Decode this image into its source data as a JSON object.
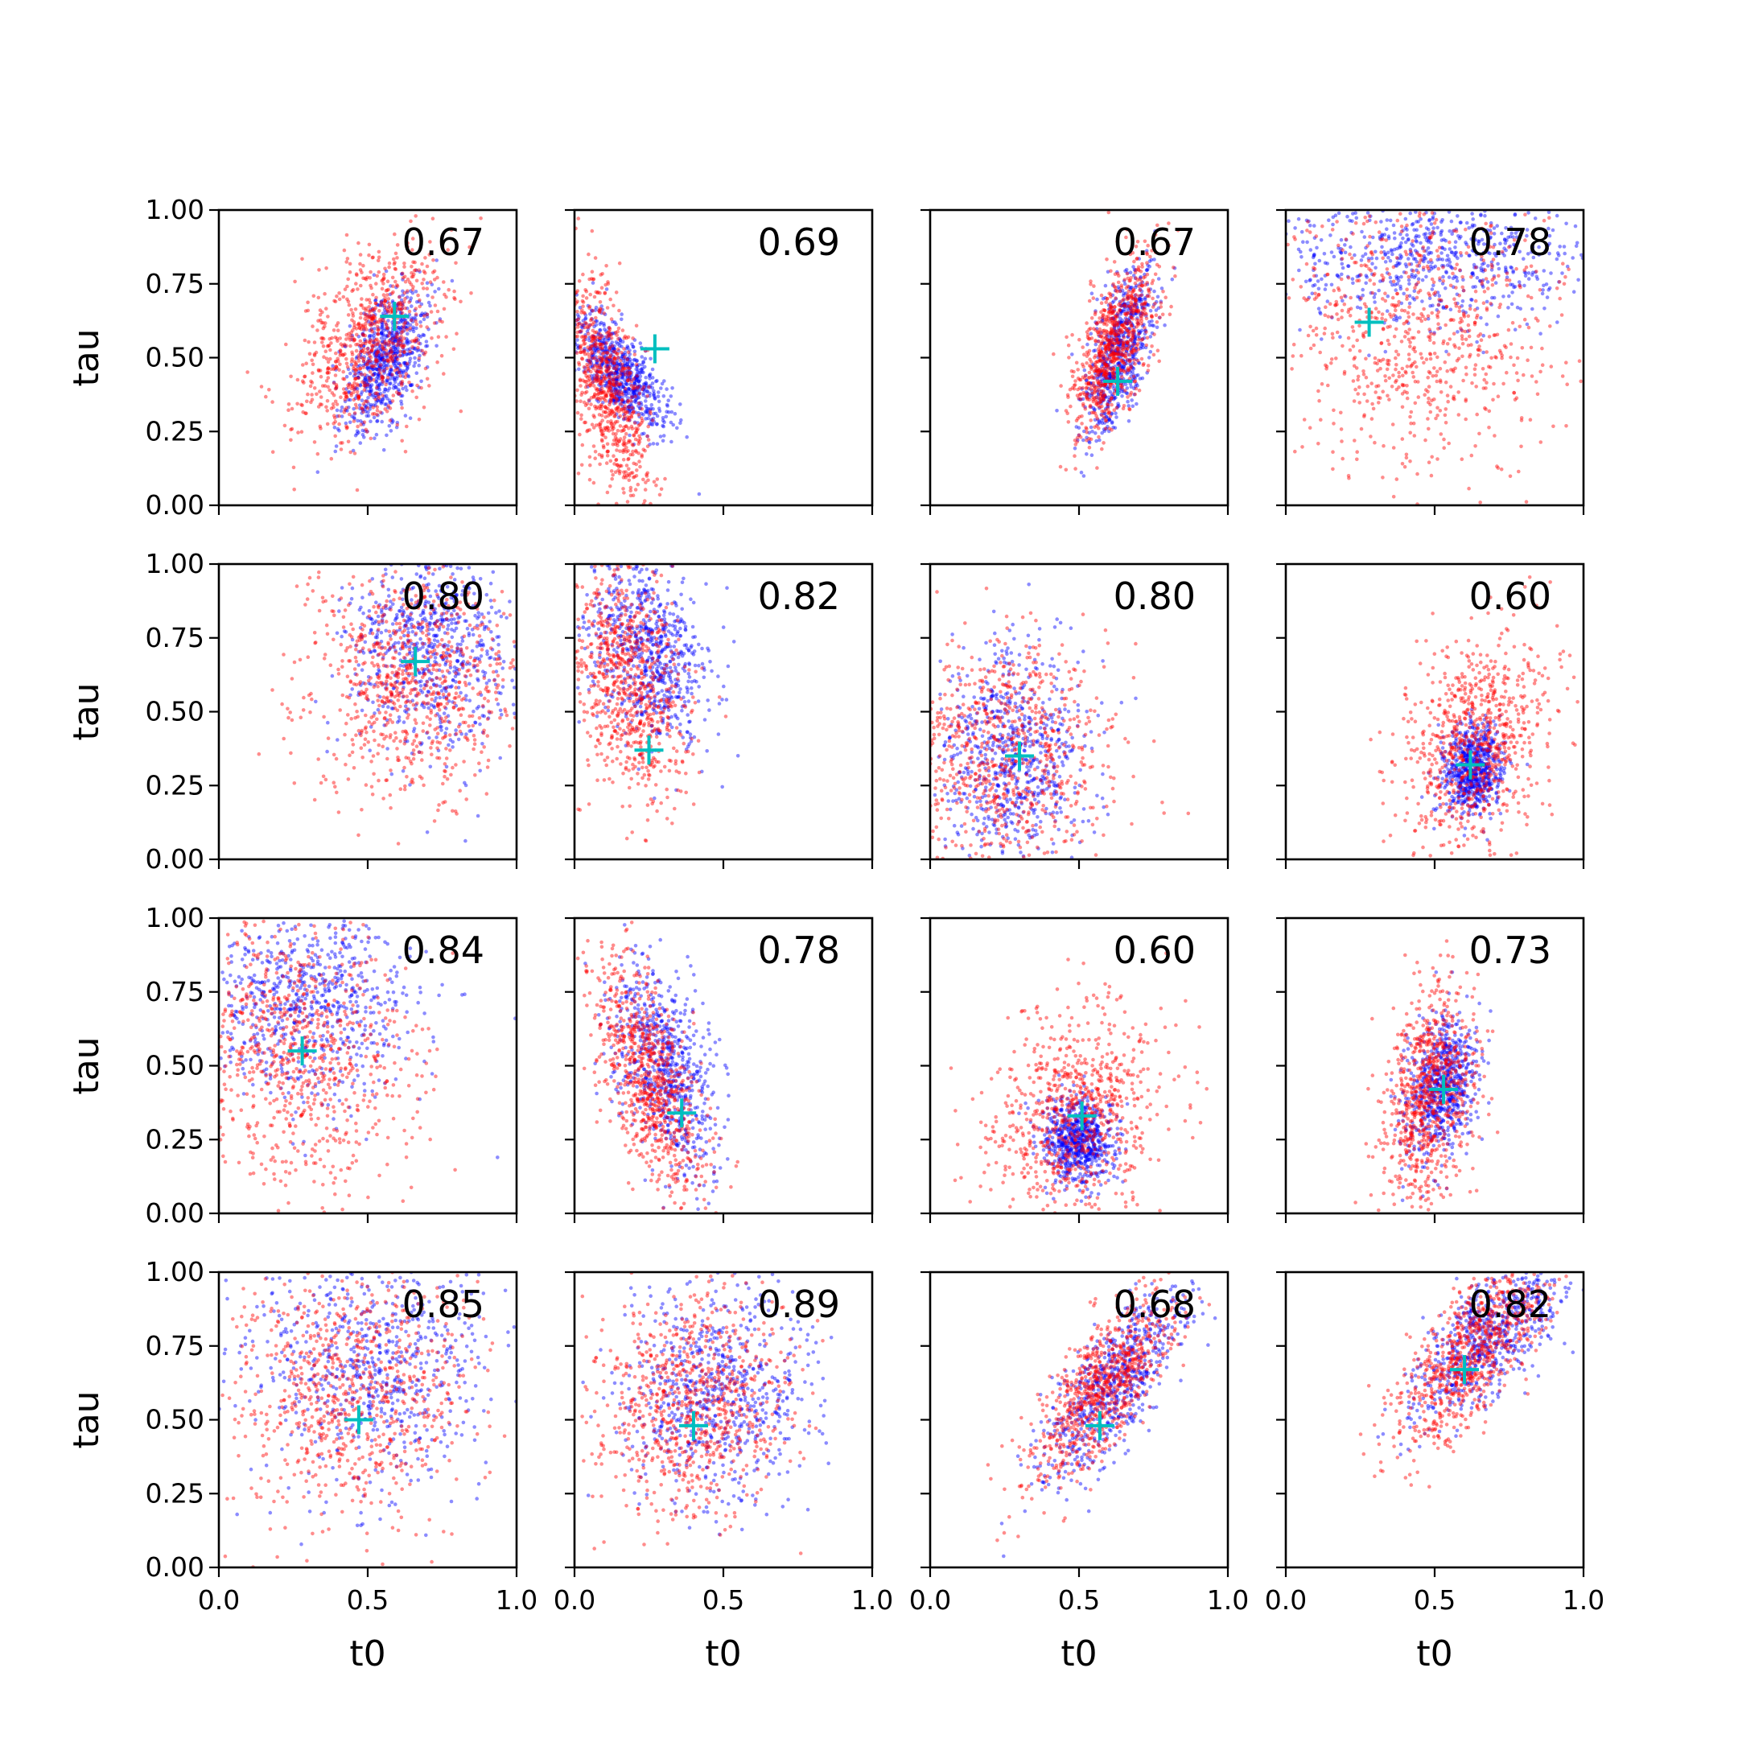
{
  "chart_data": {
    "type": "scatter",
    "grid": false,
    "rows": 4,
    "cols": 4,
    "xlabel": "t0",
    "ylabel": "tau",
    "xlim": [
      0.0,
      1.0
    ],
    "ylim": [
      0.0,
      1.0
    ],
    "xticks": [
      "0.0",
      "0.5",
      "1.0"
    ],
    "yticks": [
      "0.00",
      "0.25",
      "0.50",
      "0.75",
      "1.00"
    ],
    "colors": {
      "series_a": "#ff0000",
      "series_b": "#0000ff",
      "marker": "#00bfbf",
      "axes": "#000000"
    },
    "marker_style": "plus",
    "panels": [
      {
        "label": "0.67",
        "marker": [
          0.59,
          0.64
        ],
        "red": {
          "cx": 0.5,
          "cy": 0.55,
          "sx": 0.12,
          "sy": 0.16,
          "r": 0.45
        },
        "blue": {
          "cx": 0.56,
          "cy": 0.5,
          "sx": 0.07,
          "sy": 0.12,
          "r": 0.5
        }
      },
      {
        "label": "0.69",
        "marker": [
          0.27,
          0.53
        ],
        "red": {
          "cx": 0.1,
          "cy": 0.4,
          "sx": 0.08,
          "sy": 0.2,
          "r": -0.6
        },
        "blue": {
          "cx": 0.15,
          "cy": 0.45,
          "sx": 0.08,
          "sy": 0.1,
          "r": -0.7
        }
      },
      {
        "label": "0.67",
        "marker": [
          0.63,
          0.42
        ],
        "red": {
          "cx": 0.62,
          "cy": 0.55,
          "sx": 0.07,
          "sy": 0.15,
          "r": 0.6
        },
        "blue": {
          "cx": 0.63,
          "cy": 0.52,
          "sx": 0.06,
          "sy": 0.14,
          "r": 0.6
        }
      },
      {
        "label": "0.78",
        "marker": [
          0.28,
          0.62
        ],
        "red": {
          "cx": 0.45,
          "cy": 0.6,
          "sx": 0.25,
          "sy": 0.25,
          "r": 0.0
        },
        "blue": {
          "cx": 0.5,
          "cy": 0.85,
          "sx": 0.28,
          "sy": 0.12,
          "r": 0.0
        }
      },
      {
        "label": "0.80",
        "marker": [
          0.66,
          0.67
        ],
        "red": {
          "cx": 0.65,
          "cy": 0.6,
          "sx": 0.17,
          "sy": 0.2,
          "r": 0.0
        },
        "blue": {
          "cx": 0.72,
          "cy": 0.72,
          "sx": 0.14,
          "sy": 0.18,
          "r": 0.0
        }
      },
      {
        "label": "0.82",
        "marker": [
          0.25,
          0.37
        ],
        "red": {
          "cx": 0.18,
          "cy": 0.6,
          "sx": 0.1,
          "sy": 0.2,
          "r": -0.3
        },
        "blue": {
          "cx": 0.25,
          "cy": 0.7,
          "sx": 0.1,
          "sy": 0.16,
          "r": -0.3
        }
      },
      {
        "label": "0.80",
        "marker": [
          0.3,
          0.35
        ],
        "red": {
          "cx": 0.25,
          "cy": 0.35,
          "sx": 0.18,
          "sy": 0.2,
          "r": 0.0
        },
        "blue": {
          "cx": 0.28,
          "cy": 0.35,
          "sx": 0.12,
          "sy": 0.18,
          "r": 0.0
        }
      },
      {
        "label": "0.60",
        "marker": [
          0.62,
          0.32
        ],
        "red": {
          "cx": 0.63,
          "cy": 0.4,
          "sx": 0.12,
          "sy": 0.18,
          "r": 0.3
        },
        "blue": {
          "cx": 0.63,
          "cy": 0.3,
          "sx": 0.05,
          "sy": 0.08,
          "r": 0.2
        }
      },
      {
        "label": "0.84",
        "marker": [
          0.28,
          0.55
        ],
        "red": {
          "cx": 0.28,
          "cy": 0.55,
          "sx": 0.18,
          "sy": 0.22,
          "r": -0.2
        },
        "blue": {
          "cx": 0.3,
          "cy": 0.72,
          "sx": 0.18,
          "sy": 0.16,
          "r": 0.0
        }
      },
      {
        "label": "0.78",
        "marker": [
          0.36,
          0.34
        ],
        "red": {
          "cx": 0.25,
          "cy": 0.45,
          "sx": 0.09,
          "sy": 0.2,
          "r": -0.6
        },
        "blue": {
          "cx": 0.3,
          "cy": 0.5,
          "sx": 0.09,
          "sy": 0.18,
          "r": -0.5
        }
      },
      {
        "label": "0.60",
        "marker": [
          0.51,
          0.33
        ],
        "red": {
          "cx": 0.48,
          "cy": 0.32,
          "sx": 0.14,
          "sy": 0.18,
          "r": 0.2
        },
        "blue": {
          "cx": 0.5,
          "cy": 0.25,
          "sx": 0.06,
          "sy": 0.07,
          "r": 0.0
        }
      },
      {
        "label": "0.73",
        "marker": [
          0.53,
          0.42
        ],
        "red": {
          "cx": 0.48,
          "cy": 0.4,
          "sx": 0.08,
          "sy": 0.18,
          "r": 0.2
        },
        "blue": {
          "cx": 0.52,
          "cy": 0.42,
          "sx": 0.06,
          "sy": 0.12,
          "r": 0.3
        }
      },
      {
        "label": "0.85",
        "marker": [
          0.47,
          0.5
        ],
        "red": {
          "cx": 0.45,
          "cy": 0.6,
          "sx": 0.2,
          "sy": 0.22,
          "r": 0.0
        },
        "blue": {
          "cx": 0.5,
          "cy": 0.7,
          "sx": 0.2,
          "sy": 0.2,
          "r": 0.0
        }
      },
      {
        "label": "0.89",
        "marker": [
          0.4,
          0.48
        ],
        "red": {
          "cx": 0.4,
          "cy": 0.55,
          "sx": 0.16,
          "sy": 0.18,
          "r": 0.1
        },
        "blue": {
          "cx": 0.48,
          "cy": 0.6,
          "sx": 0.15,
          "sy": 0.18,
          "r": 0.1
        }
      },
      {
        "label": "0.68",
        "marker": [
          0.57,
          0.48
        ],
        "red": {
          "cx": 0.58,
          "cy": 0.6,
          "sx": 0.12,
          "sy": 0.16,
          "r": 0.75
        },
        "blue": {
          "cx": 0.62,
          "cy": 0.62,
          "sx": 0.12,
          "sy": 0.16,
          "r": 0.75
        }
      },
      {
        "label": "0.82",
        "marker": [
          0.6,
          0.67
        ],
        "red": {
          "cx": 0.62,
          "cy": 0.72,
          "sx": 0.13,
          "sy": 0.16,
          "r": 0.75
        },
        "blue": {
          "cx": 0.68,
          "cy": 0.78,
          "sx": 0.12,
          "sy": 0.13,
          "r": 0.7
        }
      }
    ]
  }
}
